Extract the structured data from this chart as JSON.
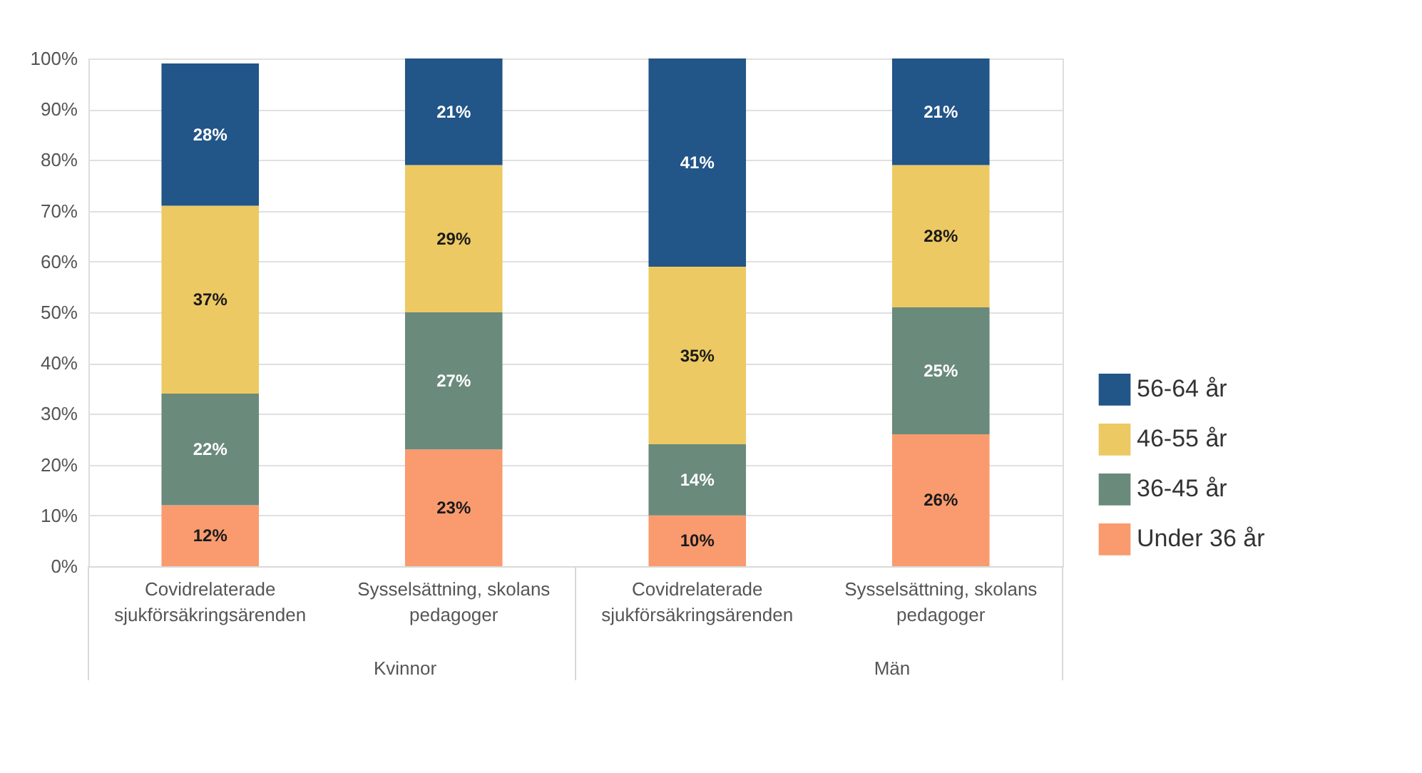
{
  "chart_data": {
    "type": "bar",
    "stacked": true,
    "categories": [
      "Covidrelaterade sjukförsäkringsärenden",
      "Sysselsättning, skolans pedagoger",
      "Covidrelaterade sjukförsäkringsärenden",
      "Sysselsättning, skolans pedagoger"
    ],
    "annotations": [
      "Kvinnor",
      "Män"
    ],
    "series": [
      {
        "name": "Under 36 år",
        "color": "#f99b6f",
        "values": [
          12,
          23,
          10,
          26
        ],
        "value_labels": [
          "12%",
          "23%",
          "10%",
          "26%"
        ]
      },
      {
        "name": "36-45 år",
        "color": "#6a8a7c",
        "values": [
          22,
          27,
          14,
          25
        ],
        "value_labels": [
          "22%",
          "27%",
          "14%",
          "25%"
        ]
      },
      {
        "name": "46-55 år",
        "color": "#edc963",
        "values": [
          37,
          29,
          35,
          28
        ],
        "value_labels": [
          "37%",
          "29%",
          "35%",
          "28%"
        ]
      },
      {
        "name": "56-64 år",
        "color": "#225588",
        "values": [
          28,
          21,
          41,
          21
        ],
        "value_labels": [
          "28%",
          "21%",
          "41%",
          "21%"
        ]
      }
    ],
    "ylim": [
      0,
      100
    ],
    "yticks": [
      {
        "value": 0,
        "label": "0%"
      },
      {
        "value": 10,
        "label": "10%"
      },
      {
        "value": 20,
        "label": "20%"
      },
      {
        "value": 30,
        "label": "30%"
      },
      {
        "value": 40,
        "label": "40%"
      },
      {
        "value": 50,
        "label": "50%"
      },
      {
        "value": 60,
        "label": "60%"
      },
      {
        "value": 70,
        "label": "70%"
      },
      {
        "value": 80,
        "label": "80%"
      },
      {
        "value": 90,
        "label": "90%"
      },
      {
        "value": 100,
        "label": "100%"
      }
    ],
    "grid": "y",
    "legend": "right"
  }
}
